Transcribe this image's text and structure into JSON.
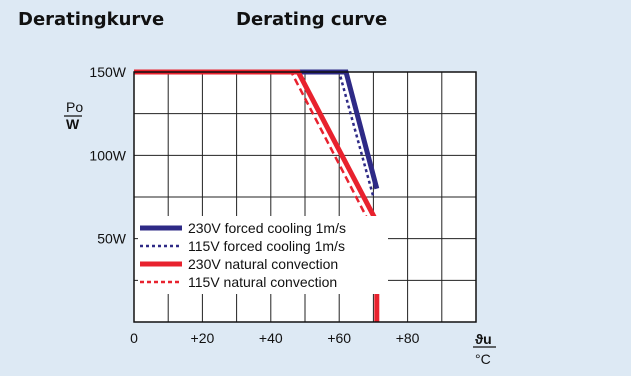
{
  "headings": {
    "de": "Deratingkurve",
    "en": "Derating curve"
  },
  "chart_data": {
    "type": "line",
    "x_unit_symbol": "ϑu",
    "x_unit": "°C",
    "y_unit_symbol": "Po",
    "y_unit": "W",
    "xlim": [
      0,
      100
    ],
    "ylim": [
      0,
      150
    ],
    "x_ticks": [
      {
        "value": 0,
        "label": "0"
      },
      {
        "value": 20,
        "label": "+20"
      },
      {
        "value": 40,
        "label": "+40"
      },
      {
        "value": 60,
        "label": "+60"
      },
      {
        "value": 80,
        "label": "+80"
      }
    ],
    "y_ticks": [
      {
        "value": 50,
        "label": "50W"
      },
      {
        "value": 100,
        "label": "100W"
      },
      {
        "value": 150,
        "label": "150W"
      }
    ],
    "grid": true,
    "legend_position": "bottom-left",
    "series": [
      {
        "name": "230V forced  cooling 1m/s",
        "color": "#2e2a86",
        "style": "solid",
        "x": [
          0,
          62,
          71,
          71
        ],
        "y": [
          150,
          150,
          80,
          80
        ]
      },
      {
        "name": "115V forced  cooling 1m/s",
        "color": "#2e2a86",
        "style": "dotted",
        "x": [
          0,
          60,
          70
        ],
        "y": [
          150,
          150,
          75
        ]
      },
      {
        "name": "230V natural convection",
        "color": "#e8222e",
        "style": "solid",
        "x": [
          0,
          48,
          71,
          71
        ],
        "y": [
          150,
          150,
          60,
          0
        ]
      },
      {
        "name": "115V natural convection",
        "color": "#e8222e",
        "style": "dashed",
        "x": [
          0,
          46,
          70
        ],
        "y": [
          150,
          150,
          55
        ]
      }
    ]
  }
}
